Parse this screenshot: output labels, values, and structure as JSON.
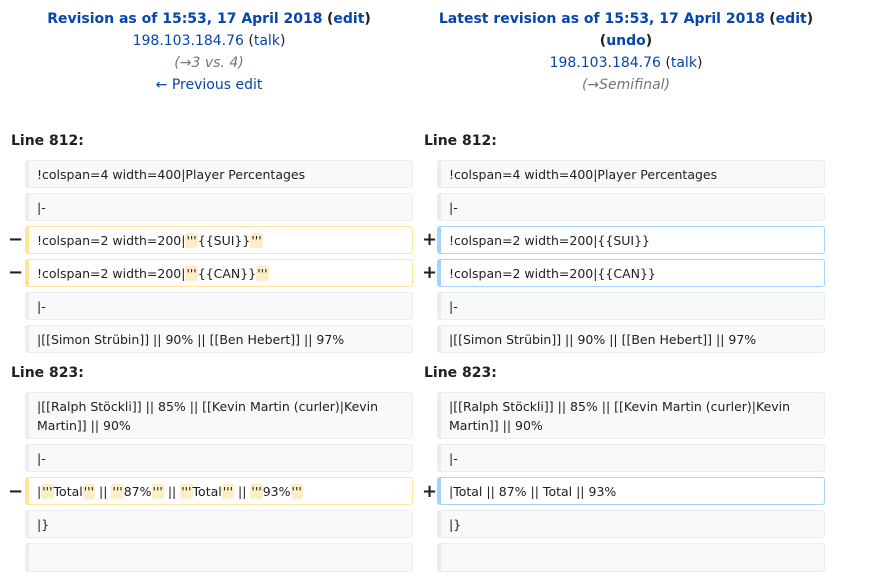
{
  "left_header": {
    "title": "Revision as of 15:53, 17 April 2018",
    "edit_label": "edit",
    "user": "198.103.184.76",
    "talk_label": "talk",
    "summary_arrow": "→",
    "summary_text": "3 vs. 4",
    "prev_edit": "← Previous edit"
  },
  "right_header": {
    "title": "Latest revision as of 15:53, 17 April 2018",
    "edit_label": "edit",
    "undo_label": "undo",
    "user": "198.103.184.76",
    "talk_label": "talk",
    "summary_arrow": "→",
    "summary_text": "Semifinal"
  },
  "markers": {
    "minus": "−",
    "plus": "+"
  },
  "blocks": [
    {
      "line_label": "Line 812:",
      "rows": [
        {
          "left": "!colspan=4 width=400|Player Percentages",
          "right": "!colspan=4 width=400|Player Percentages"
        },
        {
          "left": "|-",
          "right": "|-"
        },
        {
          "left_pre": "!colspan=2 width=200|",
          "left_hl1": "'''",
          "left_mid": "{{SUI}}",
          "left_hl2": "'''",
          "right": "!colspan=2 width=200|{{SUI}}"
        },
        {
          "left_pre": "!colspan=2 width=200|",
          "left_hl1": "'''",
          "left_mid": "{{CAN}}",
          "left_hl2": "'''",
          "right": "!colspan=2 width=200|{{CAN}}"
        },
        {
          "left": "|-",
          "right": "|-"
        },
        {
          "left": "|[[Simon Strübin]] || 90% || [[Ben Hebert]] || 97%",
          "right": "|[[Simon Strübin]] || 90% || [[Ben Hebert]] || 97%"
        }
      ]
    },
    {
      "line_label": "Line 823:",
      "rows": [
        {
          "left": "|[[Ralph Stöckli]] || 85% || [[Kevin Martin (curler)|Kevin Martin]] || 90%",
          "right": "|[[Ralph Stöckli]] || 85% || [[Kevin Martin (curler)|Kevin Martin]] || 90%"
        },
        {
          "left": "|-",
          "right": "|-"
        },
        {
          "left_segments": [
            "|",
            "'''",
            "Total",
            "'''",
            " || ",
            "'''",
            "87%",
            "'''",
            " || ",
            "'''",
            "Total",
            "'''",
            " || ",
            "'''",
            "93%",
            "'''"
          ],
          "right": "|Total || 87% || Total || 93%"
        },
        {
          "left": "|}",
          "right": "|}"
        },
        {
          "left": "",
          "right": ""
        }
      ]
    }
  ]
}
